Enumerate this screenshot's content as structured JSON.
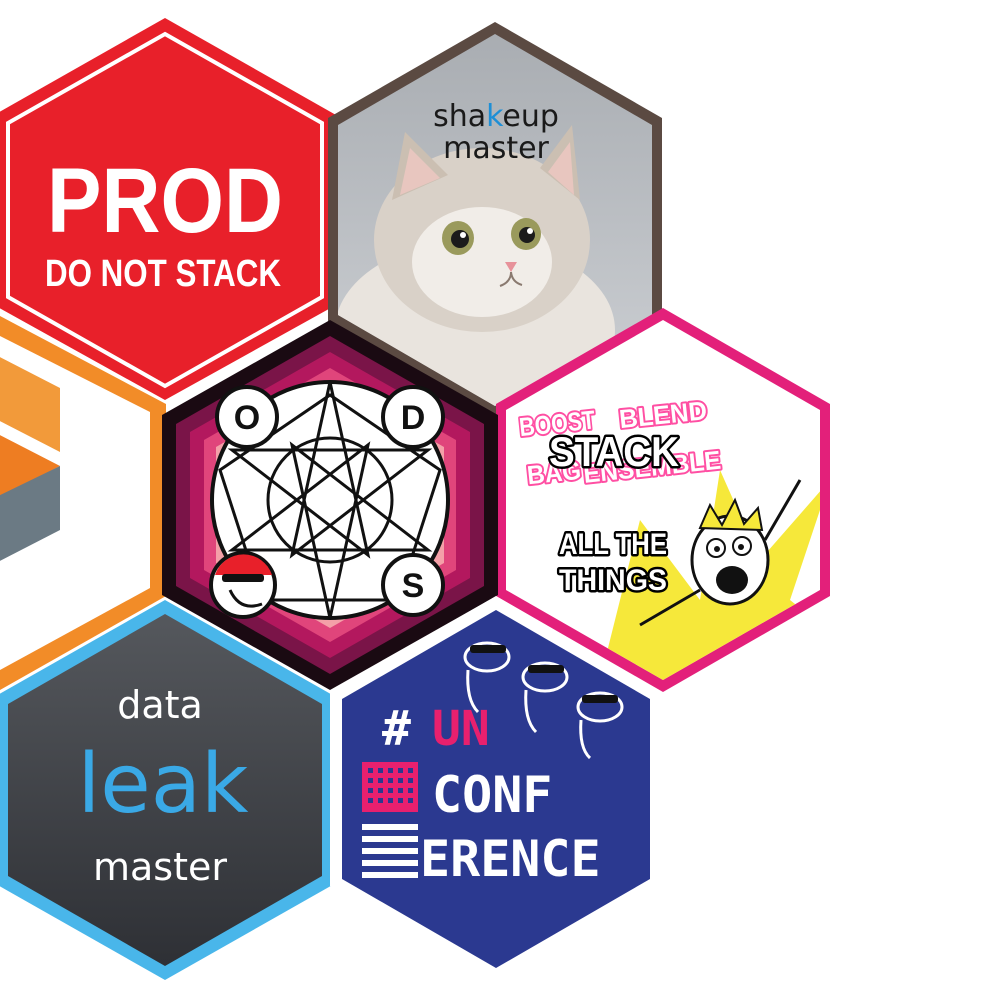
{
  "badges": {
    "prod": {
      "title": "PROD",
      "subtitle": "DO NOT STACK",
      "colors": {
        "fill": "#e8202a",
        "text": "#ffffff",
        "border": "#ffffff"
      }
    },
    "shakeup": {
      "word_a": "sha",
      "word_k": "k",
      "word_b": "eup",
      "word_2": "master",
      "image": "cat-photo",
      "colors": {
        "border": "#5b4a42",
        "accent": "#1e8fd6",
        "text": "#1a1a1a"
      }
    },
    "ods": {
      "letters": [
        "O",
        "D",
        "S"
      ],
      "mascot": "sunglasses-bird-icon",
      "colors": {
        "border": "#1a0a12",
        "ring1": "#7a1448",
        "ring2": "#b3185e",
        "ring3": "#e0457b",
        "ring4": "#f4a0a8"
      }
    },
    "stack": {
      "bg_words": [
        "BOOST",
        "BLEND",
        "STACK",
        "BAG",
        "ENSEMBLE"
      ],
      "title": "STACK",
      "caption_line1": "ALL THE",
      "caption_line2": "THINGS",
      "colors": {
        "border": "#e3207a",
        "burst": "#f6e83a"
      }
    },
    "orange_partial": {
      "colors": {
        "border": "#f28c28",
        "shape1": "#f29a3a",
        "shape2": "#ee7d22",
        "shape3": "#6b7a84"
      }
    },
    "leak": {
      "line1": "data",
      "line2": "leak",
      "line3": "master",
      "colors": {
        "fill": "#3a3d42",
        "border": "#49b6ea",
        "accent": "#3aa9e6",
        "text": "#ffffff"
      }
    },
    "unconf": {
      "hash": "#",
      "line1": "UN",
      "line2": "CONF",
      "line3": "ERENCE",
      "colors": {
        "fill": "#2b3990",
        "accent": "#e8206e",
        "text": "#ffffff"
      }
    }
  }
}
